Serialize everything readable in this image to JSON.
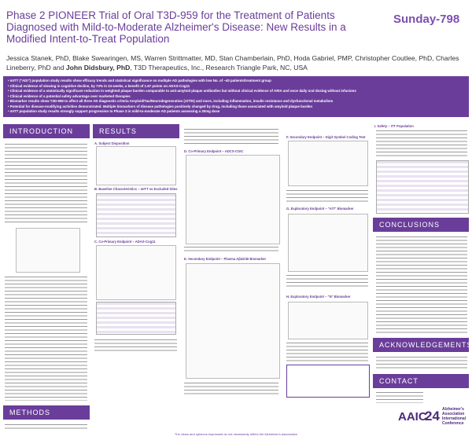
{
  "header": {
    "title": "Phase 2 PIONEER Trial of Oral T3D-959 for the Treatment of Patients Diagnosed with Mild-to-Moderate Alzheimer's Disease: New Results in a Modified Intent-to-Treat Population",
    "session": "Sunday-798",
    "authors": "Jessica Stanek, PhD, Blake Swearingen, MS, Warren Strittmatter, MD, Stan Chamberlain, PhD, Hoda Gabriel, PMP, Christopher Coutlee, PhD, Charles Lineberry, PhD and",
    "presenter": "John Didsbury, PhD",
    "affiliation": ", T3D Therapeutics, Inc., Research Triangle Park, NC, USA"
  },
  "highlights": [
    "mITT (\"ADI\") population study results show efficacy trends and statistical significance on multiple AD pathologies with low No. of ~40 patients/treatment group",
    "Clinical evidence of slowing in cognitive decline, by 73% in 24 weeks, a benefit of 1.67 points on ADAS-Cog11",
    "Clinical evidence of a statistically significant reduction in weighted plaque burden comparable to anti-amyloid plaque antibodies but without clinical evidence of ARIA and once daily oral dosing without infusions",
    "Clinical evidence of a potential safety advantage over marketed therapies",
    "Biomarker results show T3D-959 to affect all three AD diagnostic criteria Amyloid/Tau/Neurodegeneration (A/T/N) and more, including inflammation, insulin resistance and dysfunctional metabolism",
    "Potential for disease-modifying activities demonstrated. Multiple biomarkers of disease pathologies positively changed by drug, including those associated with amyloid plaque burden",
    "mITT population study results strongly support progression to Phase 3 in mild-to-moderate AD patients assessing a 30mg dose"
  ],
  "sections": {
    "introduction": "INTRODUCTION",
    "methods": "METHODS",
    "results": "RESULTS",
    "conclusions": "CONCLUSIONS",
    "acknowledgements": "ACKNOWLEDGEMENTS",
    "contact": "CONTACT"
  },
  "figures": {
    "a": "A. Subject Disposition",
    "b": "B. Baseline Characteristics – mITT vs Excluded Sites",
    "c": "C. Co-Primary Endpoint – ADAS-Cog11",
    "d": "D. Co-Primary Endpoint – ADCS-CGIC",
    "e": "E. Secondary Endpoint – Plasma Aβ42/40 Biomarker",
    "f": "F. Secondary Endpoint – Digit Symbol Coding Test",
    "g": "G. Exploratory Endpoint – \"A/T\" Biomarker",
    "h": "H. Exploratory Endpoint – \"N\" Biomarker",
    "i": "I. Safety – ITT Population"
  },
  "logo": {
    "name": "AAIC",
    "year": "24",
    "line1": "Alzheimer's",
    "line2": "Association",
    "line3": "International",
    "line4": "Conference"
  },
  "footer": "The views and opinions expressed do not necessarily reflect the Alzheimer's Association"
}
